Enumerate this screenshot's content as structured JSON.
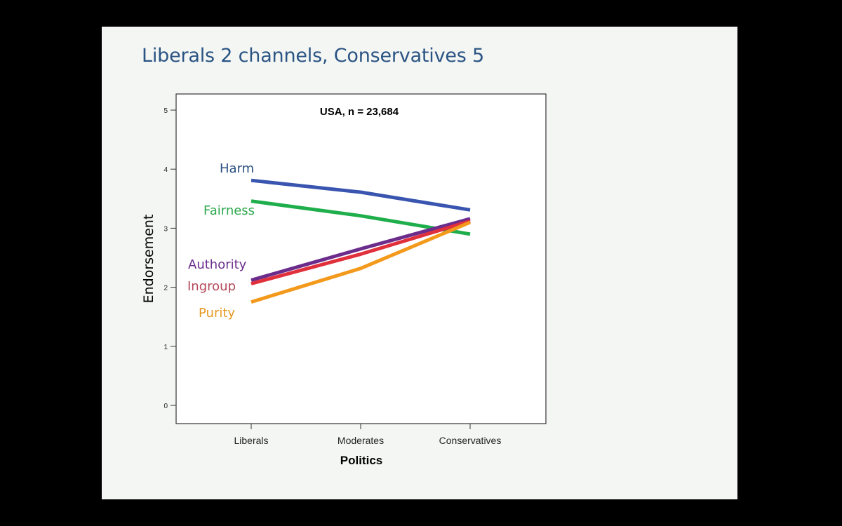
{
  "slide": {
    "title": "Liberals 2 channels, Conservatives 5"
  },
  "chart_data": {
    "type": "line",
    "title": "USA, n = 23,684",
    "xlabel": "Politics",
    "ylabel": "Endorsement",
    "categories": [
      "Liberals",
      "Moderates",
      "Conservatives"
    ],
    "ylim": [
      0,
      5
    ],
    "yticks": [
      0,
      1,
      2,
      3,
      4,
      5
    ],
    "grid": false,
    "legend": "inline labels at left",
    "series": [
      {
        "name": "Harm",
        "color": "#3a55b0",
        "values": [
          3.81,
          3.61,
          3.31
        ]
      },
      {
        "name": "Fairness",
        "color": "#1fae4c",
        "values": [
          3.46,
          3.21,
          2.9
        ]
      },
      {
        "name": "Authority",
        "color": "#6b2c8c",
        "values": [
          2.12,
          2.65,
          3.16
        ]
      },
      {
        "name": "Ingroup",
        "color": "#e0303c",
        "values": [
          2.06,
          2.56,
          3.12
        ]
      },
      {
        "name": "Purity",
        "color": "#f39a1c",
        "values": [
          1.75,
          2.32,
          3.1
        ]
      }
    ],
    "label_colors": {
      "Harm": "#2a4f7f",
      "Fairness": "#2ca84c",
      "Authority": "#6a2c8c",
      "Ingroup": "#b4475a",
      "Purity": "#e79a24"
    }
  }
}
